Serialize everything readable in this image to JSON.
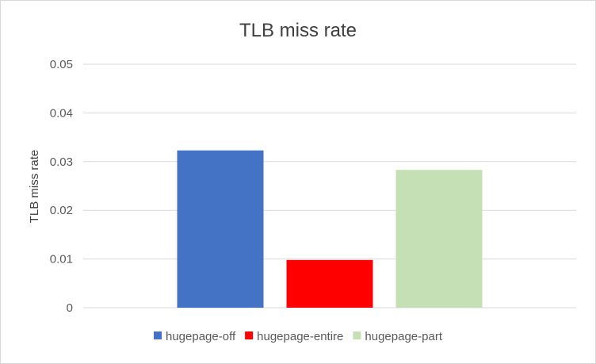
{
  "chart_data": {
    "type": "bar",
    "title": "TLB miss rate",
    "xlabel": "",
    "ylabel": "TLB miss rate",
    "ylim": [
      0,
      0.05
    ],
    "yticks": [
      "0",
      "0.01",
      "0.02",
      "0.03",
      "0.04",
      "0.05"
    ],
    "grid": true,
    "legend_position": "bottom",
    "series": [
      {
        "name": "hugepage-off",
        "value": 0.0323,
        "color": "#4472c4"
      },
      {
        "name": "hugepage-entire",
        "value": 0.0098,
        "color": "#ff0000"
      },
      {
        "name": "hugepage-part",
        "value": 0.0283,
        "color": "#c5e0b4"
      }
    ]
  }
}
